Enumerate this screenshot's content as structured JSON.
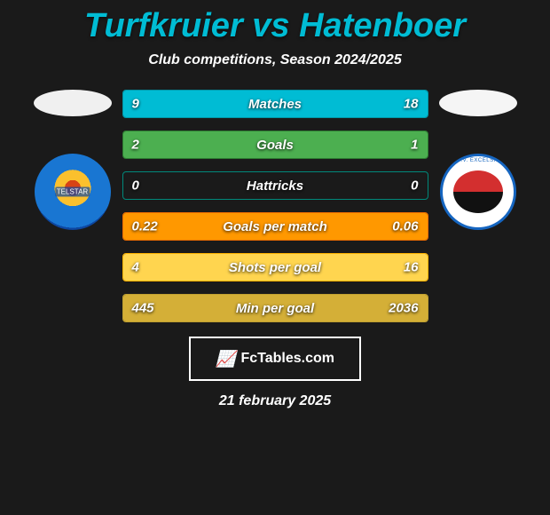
{
  "title": "Turfkruier vs Hatenboer",
  "subtitle": "Club competitions, Season 2024/2025",
  "title_color": "#00bcd4",
  "bars": [
    {
      "label": "Matches",
      "left_val": "9",
      "right_val": "18",
      "left_num": 9,
      "right_num": 18,
      "border": "#0097a7",
      "fill": "#00bcd4"
    },
    {
      "label": "Goals",
      "left_val": "2",
      "right_val": "1",
      "left_num": 2,
      "right_num": 1,
      "border": "#2e7d32",
      "fill": "#4caf50"
    },
    {
      "label": "Hattricks",
      "left_val": "0",
      "right_val": "0",
      "left_num": 0,
      "right_num": 0,
      "border": "#00897b",
      "fill": "#26a69a"
    },
    {
      "label": "Goals per match",
      "left_val": "0.22",
      "right_val": "0.06",
      "left_num": 0.22,
      "right_num": 0.06,
      "border": "#ef6c00",
      "fill": "#ff9800"
    },
    {
      "label": "Shots per goal",
      "left_val": "4",
      "right_val": "16",
      "left_num": 4,
      "right_num": 16,
      "border": "#ffb300",
      "fill": "#ffd54f"
    },
    {
      "label": "Min per goal",
      "left_val": "445",
      "right_val": "2036",
      "left_num": 445,
      "right_num": 2036,
      "border": "#c0a030",
      "fill": "#d4af37"
    }
  ],
  "footer_brand": "FcTables.com",
  "footer_date": "21 february 2025",
  "bg_color": "#1a1a1a",
  "text_color": "#ffffff"
}
